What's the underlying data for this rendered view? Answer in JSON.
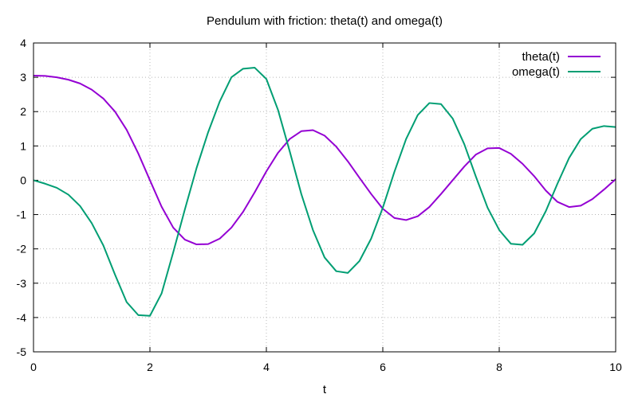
{
  "chart_data": {
    "type": "line",
    "title": "Pendulum with friction: theta(t) and omega(t)",
    "xlabel": "t",
    "ylabel": "",
    "xlim": [
      0,
      10
    ],
    "ylim": [
      -5,
      4
    ],
    "x_ticks": [
      0,
      2,
      4,
      6,
      8,
      10
    ],
    "y_ticks": [
      -5,
      -4,
      -3,
      -2,
      -1,
      0,
      1,
      2,
      3,
      4
    ],
    "grid": true,
    "legend_position": "top-right",
    "series": [
      {
        "name": "theta(t)",
        "color": "#9400d3",
        "x": [
          0.0,
          0.2,
          0.4,
          0.6,
          0.8,
          1.0,
          1.2,
          1.4,
          1.6,
          1.8,
          2.0,
          2.2,
          2.4,
          2.6,
          2.8,
          3.0,
          3.2,
          3.4,
          3.6,
          3.8,
          4.0,
          4.2,
          4.4,
          4.6,
          4.8,
          5.0,
          5.2,
          5.4,
          5.6,
          5.8,
          6.0,
          6.2,
          6.4,
          6.6,
          6.8,
          7.0,
          7.2,
          7.4,
          7.6,
          7.8,
          8.0,
          8.2,
          8.4,
          8.6,
          8.8,
          9.0,
          9.2,
          9.4,
          9.6,
          9.8,
          10.0
        ],
        "values": [
          3.05,
          3.04,
          3.0,
          2.93,
          2.82,
          2.64,
          2.38,
          2.0,
          1.47,
          0.78,
          0.0,
          -0.77,
          -1.38,
          -1.73,
          -1.87,
          -1.86,
          -1.7,
          -1.38,
          -0.92,
          -0.35,
          0.26,
          0.8,
          1.2,
          1.43,
          1.46,
          1.3,
          0.98,
          0.55,
          0.07,
          -0.4,
          -0.83,
          -1.1,
          -1.16,
          -1.05,
          -0.78,
          -0.4,
          0.0,
          0.4,
          0.75,
          0.93,
          0.94,
          0.77,
          0.48,
          0.12,
          -0.3,
          -0.63,
          -0.78,
          -0.74,
          -0.55,
          -0.27,
          0.03
        ]
      },
      {
        "name": "omega(t)",
        "color": "#009e73",
        "x": [
          0.0,
          0.2,
          0.4,
          0.6,
          0.8,
          1.0,
          1.2,
          1.4,
          1.6,
          1.8,
          2.0,
          2.2,
          2.4,
          2.6,
          2.8,
          3.0,
          3.2,
          3.4,
          3.6,
          3.8,
          4.0,
          4.2,
          4.4,
          4.6,
          4.8,
          5.0,
          5.2,
          5.4,
          5.6,
          5.8,
          6.0,
          6.2,
          6.4,
          6.6,
          6.8,
          7.0,
          7.2,
          7.4,
          7.6,
          7.8,
          8.0,
          8.2,
          8.4,
          8.6,
          8.8,
          9.0,
          9.2,
          9.4,
          9.6,
          9.8,
          10.0
        ],
        "values": [
          0.0,
          -0.1,
          -0.22,
          -0.42,
          -0.75,
          -1.25,
          -1.9,
          -2.75,
          -3.55,
          -3.93,
          -3.95,
          -3.3,
          -2.1,
          -0.85,
          0.35,
          1.4,
          2.3,
          3.0,
          3.25,
          3.28,
          2.95,
          2.05,
          0.85,
          -0.4,
          -1.45,
          -2.25,
          -2.65,
          -2.7,
          -2.35,
          -1.7,
          -0.8,
          0.25,
          1.2,
          1.9,
          2.25,
          2.22,
          1.8,
          1.05,
          0.1,
          -0.8,
          -1.45,
          -1.85,
          -1.88,
          -1.55,
          -0.9,
          -0.1,
          0.65,
          1.2,
          1.5,
          1.58,
          1.55
        ]
      }
    ]
  }
}
